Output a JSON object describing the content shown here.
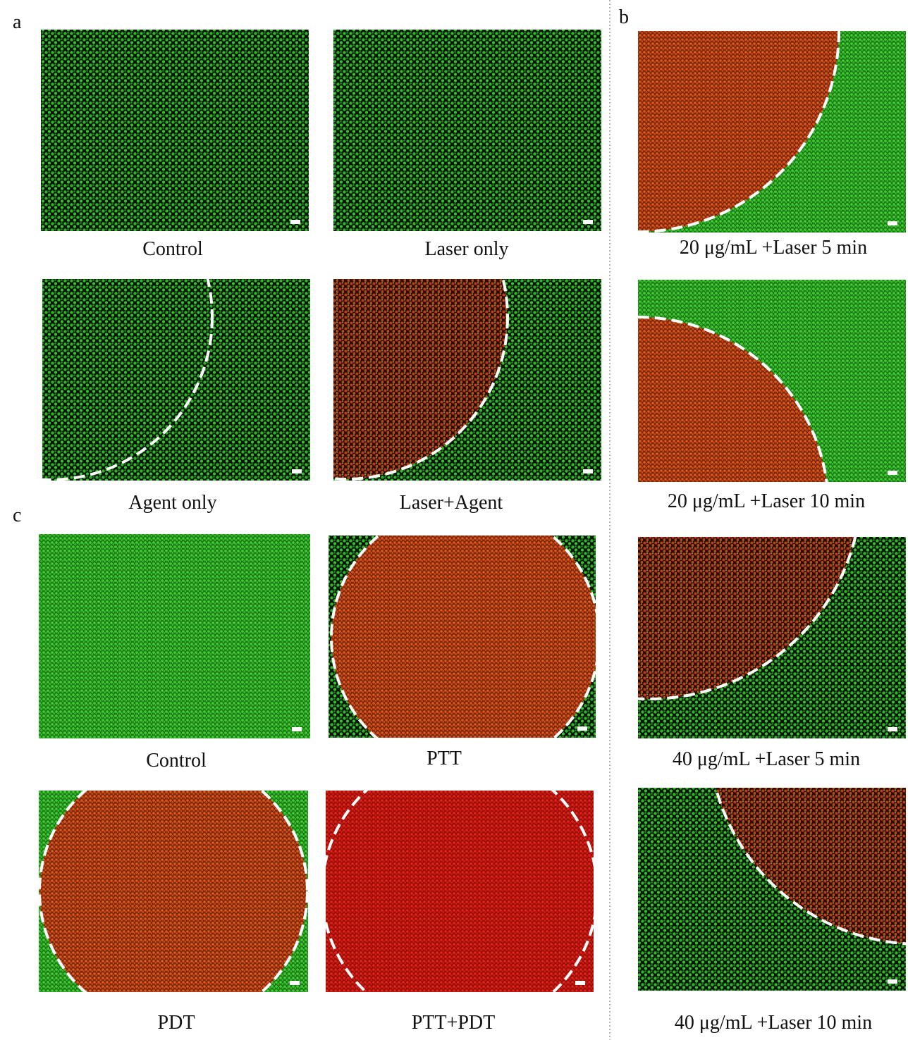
{
  "panels": [
    {
      "label": "a",
      "images": [
        {
          "caption": "Control"
        },
        {
          "caption": "Laser only"
        },
        {
          "caption": "Agent only"
        },
        {
          "caption": "Laser+Agent"
        }
      ]
    },
    {
      "label": "b",
      "images": [
        {
          "caption": "20 μg/mL +Laser 5 min"
        },
        {
          "caption": "20 μg/mL +Laser 10 min"
        },
        {
          "caption": "40 μg/mL +Laser 5 min"
        },
        {
          "caption": "40 μg/mL +Laser 10 min"
        }
      ]
    },
    {
      "label": "c",
      "images": [
        {
          "caption": "Control"
        },
        {
          "caption": "PTT"
        },
        {
          "caption": "PDT"
        },
        {
          "caption": "PTT+PDT"
        }
      ]
    }
  ]
}
